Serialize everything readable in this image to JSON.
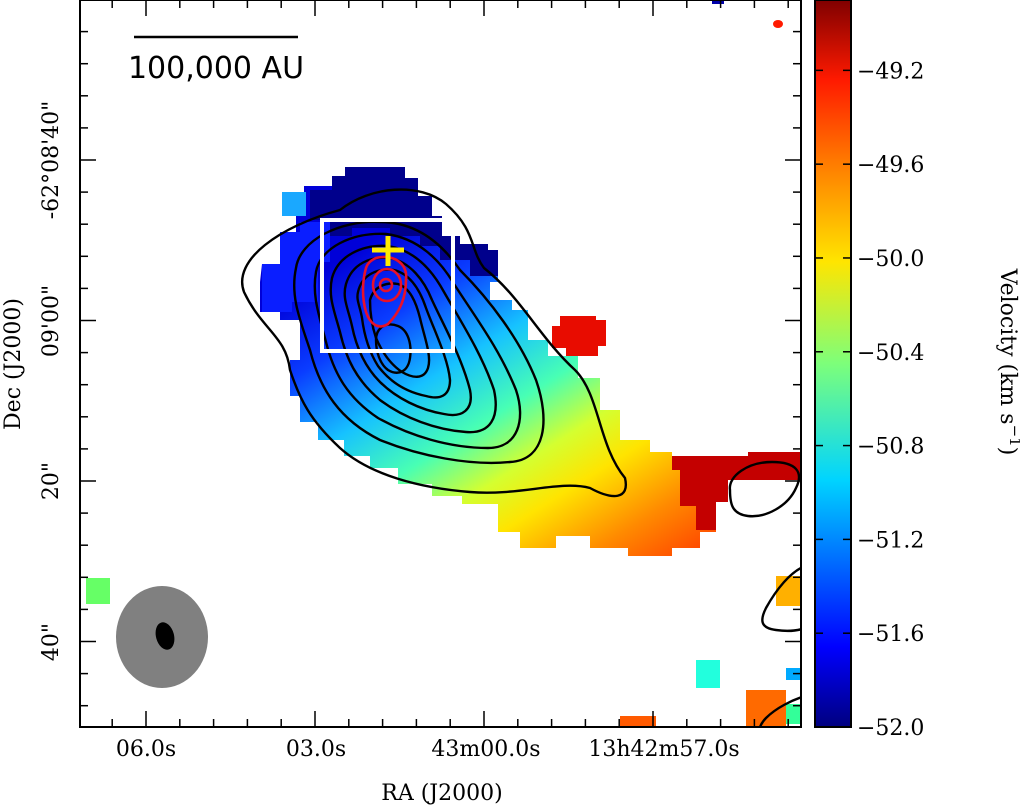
{
  "chart_data": {
    "type": "heatmap",
    "title": "",
    "xlabel": "RA (J2000)",
    "ylabel": "Dec (J2000)",
    "x_ticks": [
      "06.0s",
      "03.0s",
      "43m00.0s",
      "13h42m57.0s"
    ],
    "y_ticks": [
      "-62°08'40\"",
      "09'00\"",
      "20\"",
      "40\""
    ],
    "scale_bar_label": "100,000 AU",
    "colorbar": {
      "label": "Velocity (km s",
      "label_sup": "−1",
      "label_close": ")",
      "range": [
        -52.0,
        -48.9
      ],
      "ticks": [
        "−49.2",
        "−49.6",
        "−50.0",
        "−50.4",
        "−50.8",
        "−51.2",
        "−51.6",
        "−52.0"
      ],
      "tick_values": [
        -49.2,
        -49.6,
        -50.0,
        -50.4,
        -50.8,
        -51.2,
        -51.6,
        -52.0
      ],
      "colormap": "jet"
    },
    "velocity_field": [
      {
        "region": "north-east cap",
        "value": -52.0
      },
      {
        "region": "north-west cap",
        "value": -51.6
      },
      {
        "region": "central core",
        "value": -51.2
      },
      {
        "region": "southern tail",
        "value": -50.6
      },
      {
        "region": "south-west lobe",
        "value": -50.0
      },
      {
        "region": "western tail",
        "value": -49.5
      },
      {
        "region": "far-west tip",
        "value": -49.1
      },
      {
        "region": "red clump",
        "value": -49.2
      }
    ],
    "black_contours": 8,
    "red_contours": 3,
    "markers": {
      "cross_color": "#ffeb00",
      "box_color": "#ffffff",
      "beam_color": "#808080"
    }
  }
}
